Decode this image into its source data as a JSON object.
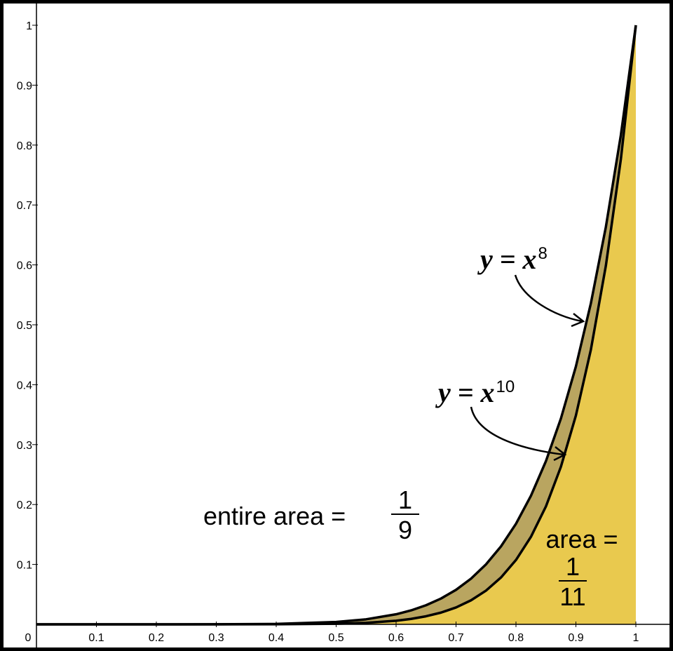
{
  "chart_data": {
    "type": "area",
    "x": [
      0,
      0.1,
      0.2,
      0.3,
      0.4,
      0.5,
      0.55,
      0.6,
      0.625,
      0.65,
      0.675,
      0.7,
      0.725,
      0.75,
      0.775,
      0.8,
      0.825,
      0.85,
      0.875,
      0.9,
      0.925,
      0.95,
      0.975,
      1
    ],
    "series": [
      {
        "color": "#b9a560",
        "line_color": "#000000",
        "values": [
          0,
          0,
          0,
          0.0001,
          0.0007,
          0.0039,
          0.0084,
          0.0168,
          0.0233,
          0.0319,
          0.0431,
          0.0576,
          0.0763,
          0.1001,
          0.1301,
          0.1678,
          0.2146,
          0.2725,
          0.3436,
          0.4305,
          0.536,
          0.6634,
          0.8167,
          1
        ]
      },
      {
        "color": "#e9c94e",
        "line_color": "#000000",
        "values": [
          0,
          0,
          0,
          0,
          0.0001,
          0.001,
          0.0025,
          0.006,
          0.0091,
          0.0135,
          0.0196,
          0.0282,
          0.0401,
          0.0563,
          0.0782,
          0.1074,
          0.1461,
          0.1969,
          0.2631,
          0.3487,
          0.4586,
          0.5987,
          0.7763,
          1
        ]
      }
    ],
    "xlim": [
      0,
      1.05
    ],
    "ylim": [
      0,
      1.04
    ],
    "xticks": [
      0,
      0.1,
      0.2,
      0.3,
      0.4,
      0.5,
      0.6,
      0.7,
      0.8,
      0.9,
      1
    ],
    "yticks": [
      0.1,
      0.2,
      0.3,
      0.4,
      0.5,
      0.6,
      0.7,
      0.8,
      0.9,
      1
    ],
    "annotations": [
      {
        "text": "y = x",
        "exponent": 8
      },
      {
        "text": "y = x",
        "exponent": 10
      },
      {
        "text": "entire area =",
        "numerator": 1,
        "denominator": 9
      },
      {
        "text": "area =",
        "numerator": 1,
        "denominator": 11
      }
    ]
  }
}
